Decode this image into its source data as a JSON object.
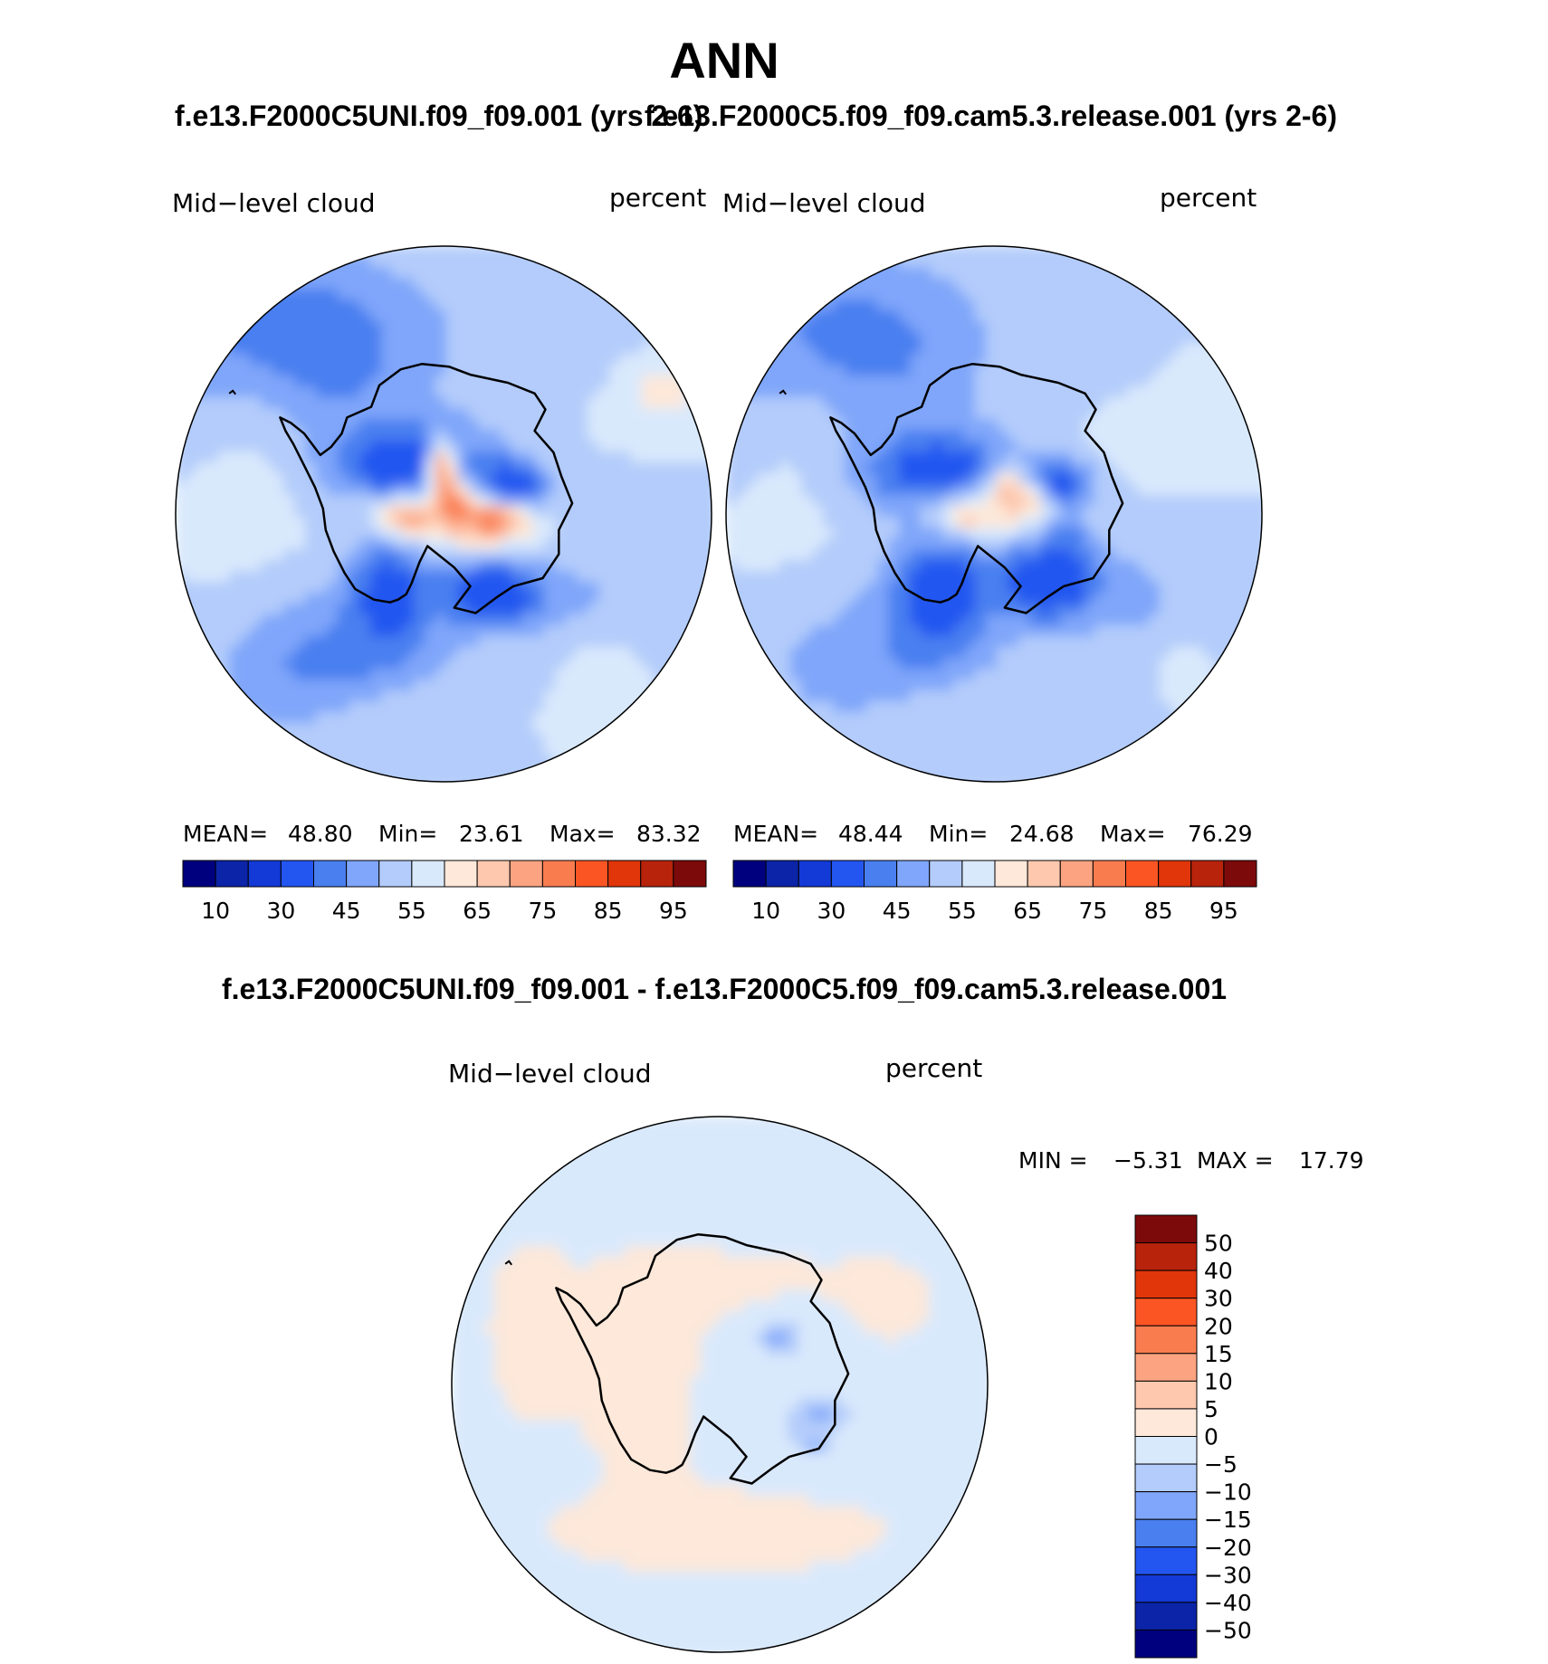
{
  "figure": {
    "season": "ANN",
    "case1_title": "f.e13.F2000C5UNI.f09_f09.001 (yrs 2-6)",
    "case2_title": "f.e13.F2000C5.f09_f09.cam5.3.release.001 (yrs 2-6)",
    "diff_title": "f.e13.F2000C5UNI.f09_f09.001 - f.e13.F2000C5.f09_f09.cam5.3.release.001"
  },
  "panels": [
    {
      "variable": "Mid−level  cloud",
      "units": "percent",
      "stats": {
        "mean_label": "MEAN=",
        "mean": "48.80",
        "min_label": "Min=",
        "min": "23.61",
        "max_label": "Max=",
        "max": "83.32"
      }
    },
    {
      "variable": "Mid−level  cloud",
      "units": "percent",
      "stats": {
        "mean_label": "MEAN=",
        "mean": "48.44",
        "min_label": "Min=",
        "min": "24.68",
        "max_label": "Max=",
        "max": "76.29"
      }
    },
    {
      "variable": "Mid−level  cloud",
      "units": "percent",
      "stats": {
        "min_label": "MIN =",
        "min": "−5.31",
        "max_label": "MAX =",
        "max": "17.79"
      }
    }
  ],
  "chart_data": [
    {
      "type": "heatmap",
      "projection": "south-polar-stereographic",
      "title": "f.e13.F2000C5UNI.f09_f09.001 (yrs 2-6)",
      "field": "Mid-level cloud",
      "units": "percent",
      "mean": 48.8,
      "min": 23.61,
      "max": 83.32,
      "contour_levels": [
        10,
        20,
        30,
        40,
        45,
        50,
        55,
        60,
        65,
        70,
        75,
        80,
        85,
        90,
        95
      ],
      "colorbar_tick_labels": [
        "10",
        "30",
        "45",
        "55",
        "65",
        "75",
        "85",
        "95"
      ],
      "colors": [
        "#00007f",
        "#0b24a8",
        "#1339d6",
        "#2356f0",
        "#4a7ff0",
        "#7fa6fa",
        "#b3ccfb",
        "#d9e9fc",
        "#fde8d9",
        "#fdc8ae",
        "#fca482",
        "#f97c4f",
        "#fb5524",
        "#e0360a",
        "#b8230b",
        "#7d0a0a"
      ]
    },
    {
      "type": "heatmap",
      "projection": "south-polar-stereographic",
      "title": "f.e13.F2000C5.f09_f09.cam5.3.release.001 (yrs 2-6)",
      "field": "Mid-level cloud",
      "units": "percent",
      "mean": 48.44,
      "min": 24.68,
      "max": 76.29,
      "contour_levels": [
        10,
        20,
        30,
        40,
        45,
        50,
        55,
        60,
        65,
        70,
        75,
        80,
        85,
        90,
        95
      ],
      "colorbar_tick_labels": [
        "10",
        "30",
        "45",
        "55",
        "65",
        "75",
        "85",
        "95"
      ],
      "colors": [
        "#00007f",
        "#0b24a8",
        "#1339d6",
        "#2356f0",
        "#4a7ff0",
        "#7fa6fa",
        "#b3ccfb",
        "#d9e9fc",
        "#fde8d9",
        "#fdc8ae",
        "#fca482",
        "#f97c4f",
        "#fb5524",
        "#e0360a",
        "#b8230b",
        "#7d0a0a"
      ]
    },
    {
      "type": "heatmap",
      "projection": "south-polar-stereographic",
      "title": "f.e13.F2000C5UNI.f09_f09.001 - f.e13.F2000C5.f09_f09.cam5.3.release.001",
      "field": "Mid-level cloud",
      "units": "percent",
      "min": -5.31,
      "max": 17.79,
      "contour_levels": [
        -50,
        -40,
        -30,
        -20,
        -15,
        -10,
        -5,
        0,
        5,
        10,
        15,
        20,
        30,
        40,
        50
      ],
      "colorbar_tick_labels": [
        "50",
        "40",
        "30",
        "20",
        "15",
        "10",
        "5",
        "0",
        "−5",
        "−10",
        "−15",
        "−20",
        "−30",
        "−40",
        "−50"
      ],
      "colors": [
        "#7d0a0a",
        "#b8230b",
        "#e0360a",
        "#fb5524",
        "#f97c4f",
        "#fca482",
        "#fdc8ae",
        "#fde8d9",
        "#d9e9fc",
        "#b3ccfb",
        "#7fa6fa",
        "#4a7ff0",
        "#2356f0",
        "#1339d6",
        "#0b24a8",
        "#00007f"
      ]
    }
  ]
}
